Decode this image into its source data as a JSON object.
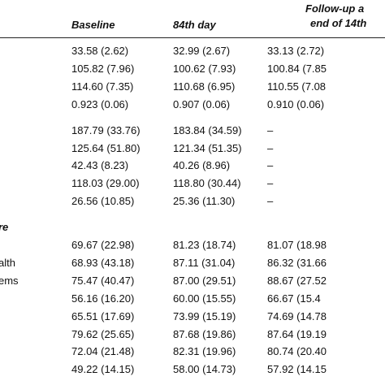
{
  "table": {
    "header": {
      "col1": "Baseline",
      "col2": "84th day",
      "col3_line1": "Follow-up a",
      "col3_line2": "end of 14th"
    },
    "groups": [
      {
        "rows": [
          {
            "cells": [
              "33.58 (2.62)",
              "32.99 (2.67)",
              "33.13 (2.72)"
            ]
          },
          {
            "cells": [
              "105.82 (7.96)",
              "100.62 (7.93)",
              "100.84 (7.85"
            ]
          },
          {
            "cells": [
              "114.60 (7.35)",
              "110.68 (6.95)",
              "110.55 (7.08"
            ]
          },
          {
            "cells": [
              "0.923 (0.06)",
              "0.907 (0.06)",
              "0.910 (0.06)"
            ]
          }
        ]
      },
      {
        "rows": [
          {
            "cells": [
              "187.79 (33.76)",
              "183.84 (34.59)",
              "–"
            ]
          },
          {
            "cells": [
              "125.64 (51.80)",
              "121.34 (51.35)",
              "–"
            ]
          },
          {
            "cells": [
              "42.43 (8.23)",
              "40.26 (8.96)",
              "–"
            ]
          },
          {
            "cells": [
              "118.03 (29.00)",
              "118.80 (30.44)",
              "–"
            ]
          },
          {
            "cells": [
              "26.56 (10.85)",
              "25.36 (11.30)",
              "–"
            ]
          }
        ]
      },
      {
        "heading": "re",
        "rows": [
          {
            "cells": [
              "69.67 (22.98)",
              "81.23 (18.74)",
              "81.07 (18.98"
            ]
          },
          {
            "label": "alth",
            "cells": [
              "68.93 (43.18)",
              "87.11 (31.04)",
              "86.32 (31.66"
            ]
          },
          {
            "label": "ems",
            "cells": [
              "75.47 (40.47)",
              "87.00 (29.51)",
              "88.67 (27.52"
            ]
          },
          {
            "cells": [
              "56.16 (16.20)",
              "60.00 (15.55)",
              "66.67 (15.4"
            ]
          },
          {
            "cells": [
              "65.51 (17.69)",
              "73.99 (15.19)",
              "74.69 (14.78"
            ]
          },
          {
            "cells": [
              "79.62 (25.65)",
              "87.68 (19.86)",
              "87.64 (19.19"
            ]
          },
          {
            "cells": [
              "72.04 (21.48)",
              "82.31 (19.96)",
              "80.74 (20.40"
            ]
          },
          {
            "cells": [
              "49.22 (14.15)",
              "58.00 (14.73)",
              "57.92 (14.15"
            ]
          }
        ]
      }
    ]
  }
}
